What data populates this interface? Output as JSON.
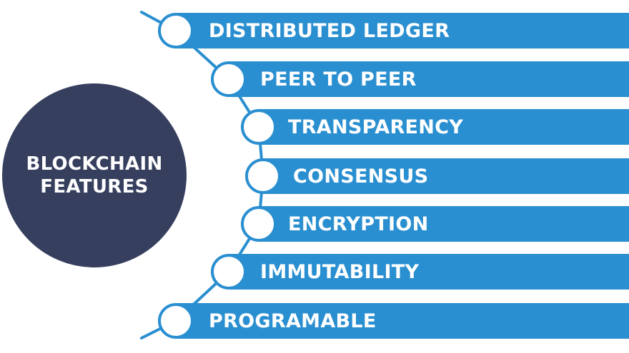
{
  "hub": {
    "line1": "BLOCKCHAIN",
    "line2": "FEATURES"
  },
  "features": [
    "DISTRIBUTED LEDGER",
    "PEER TO PEER",
    "TRANSPARENCY",
    "CONSENSUS",
    "ENCRYPTION",
    "IMMUTABILITY",
    "PROGRAMABLE"
  ],
  "colors": {
    "bar": "#2a8fd0",
    "hub": "#363f5e",
    "text": "#ffffff",
    "node_fill": "#ffffff",
    "background": "#ffffff"
  }
}
